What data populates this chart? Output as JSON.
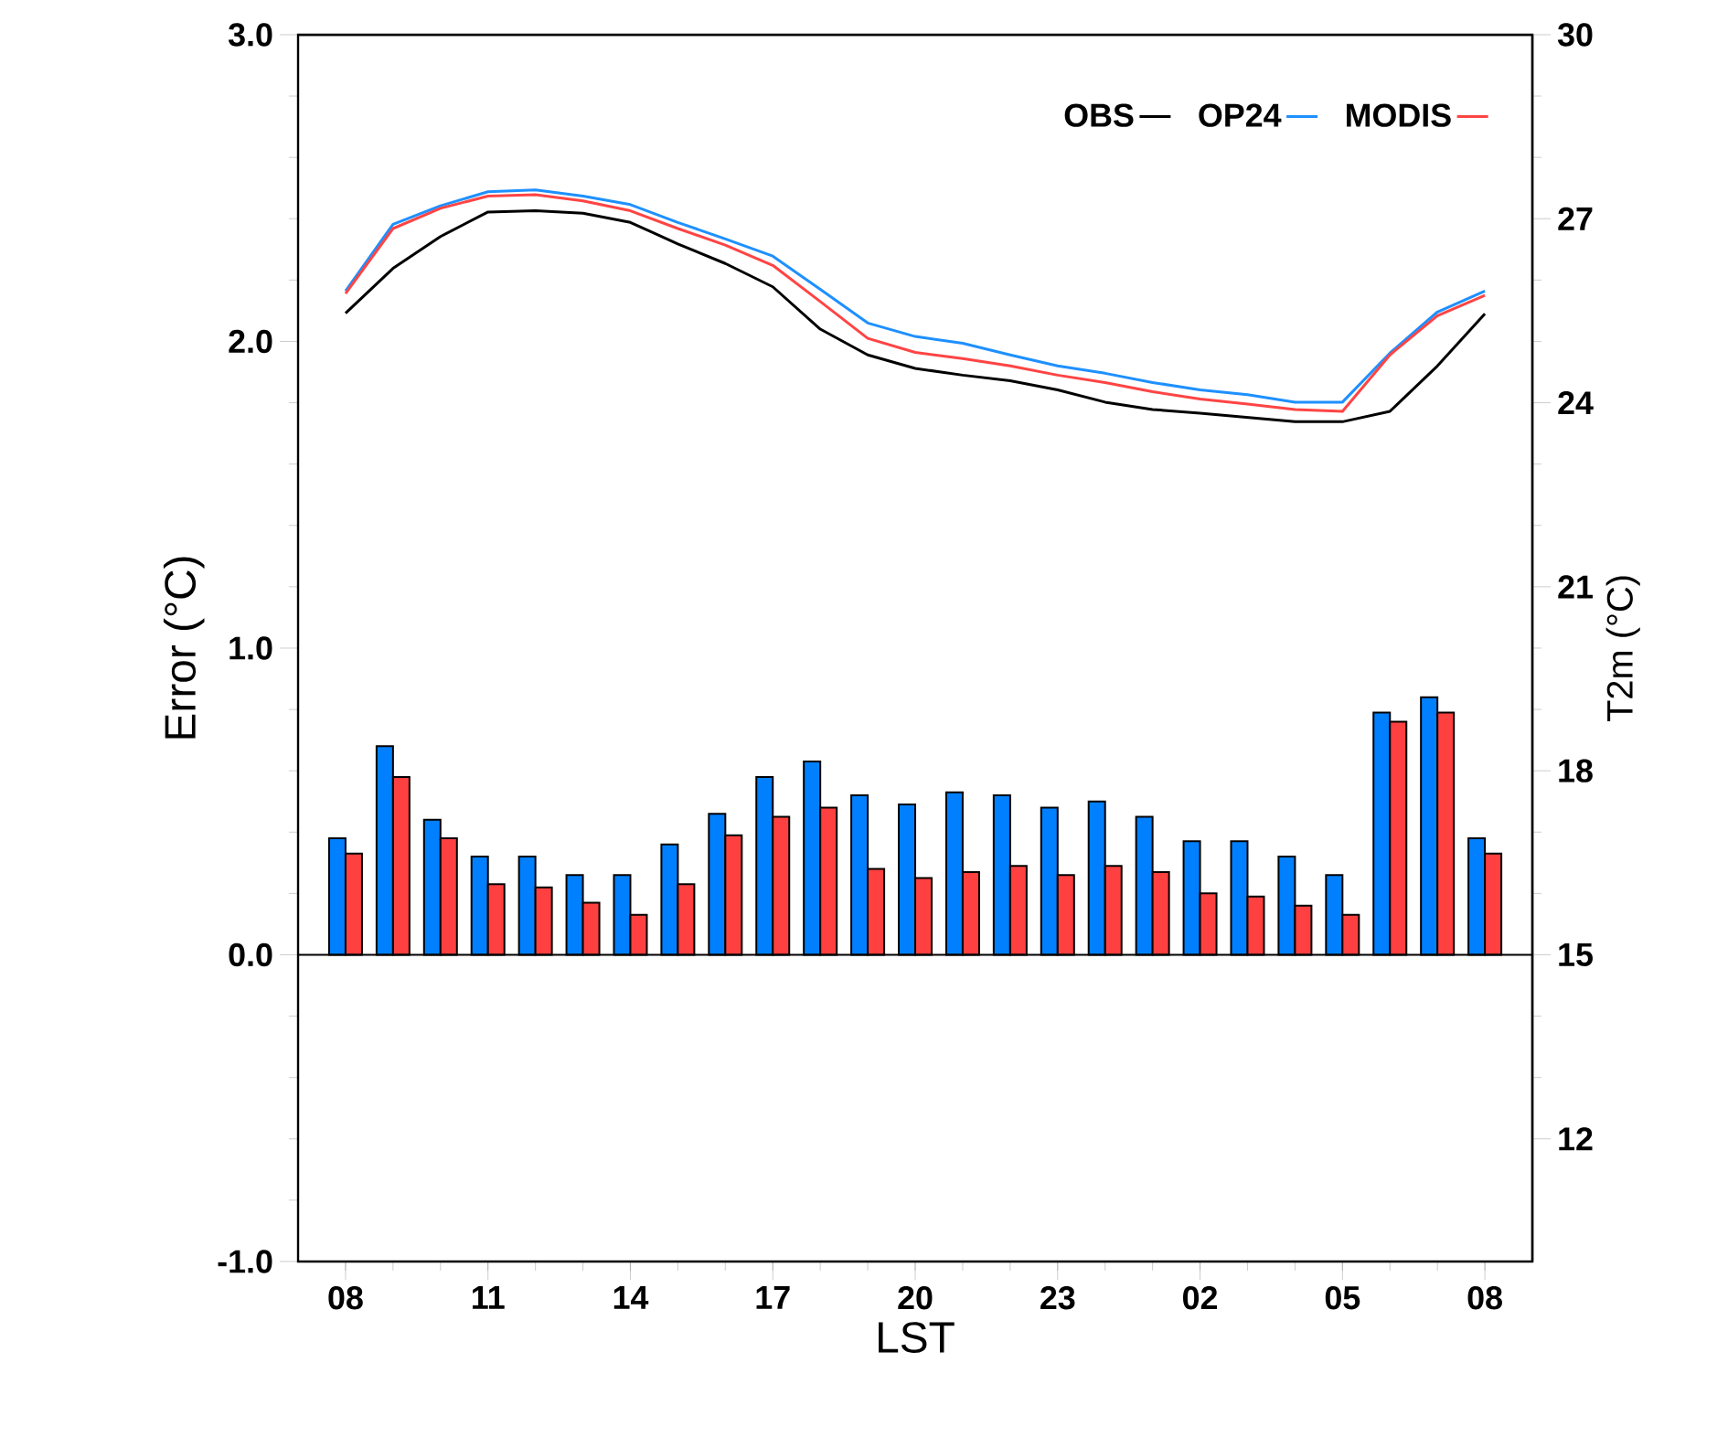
{
  "chart_data": {
    "type": "bar",
    "xlabel": "LST",
    "ylabel": "Error (°C)",
    "y2label": "T2m (°C)",
    "categories": [
      "08",
      null,
      null,
      "11",
      null,
      null,
      "14",
      null,
      null,
      "17",
      null,
      null,
      "20",
      null,
      null,
      "23",
      null,
      null,
      "02",
      null,
      null,
      "05",
      null,
      null,
      "08"
    ],
    "ylim": [
      -1,
      3
    ],
    "yticks": [
      {
        "value": -1,
        "label": "-1.0"
      },
      {
        "value": 0,
        "label": "0.0"
      },
      {
        "value": 1,
        "label": "1.0"
      },
      {
        "value": 2,
        "label": "2.0"
      },
      {
        "value": 3,
        "label": "3.0"
      }
    ],
    "y2lim": [
      10,
      30
    ],
    "y2ticks": [
      12,
      15,
      18,
      21,
      24,
      27,
      30
    ],
    "legend": "top right",
    "marker": "none",
    "ref_lines": [
      {
        "axis": "y",
        "value": 0,
        "color": "#000000"
      }
    ],
    "series": [
      {
        "color": "#0080ff",
        "values": [
          0.38,
          0.68,
          0.44,
          0.32,
          0.32,
          0.26,
          0.26,
          0.36,
          0.46,
          0.58,
          0.63,
          0.52,
          0.49,
          0.53,
          0.52,
          0.48,
          0.5,
          0.45,
          0.37,
          0.37,
          0.32,
          0.26,
          0.79,
          0.84,
          0.38
        ]
      },
      {
        "color": "#ff4040",
        "values": [
          0.33,
          0.58,
          0.38,
          0.23,
          0.22,
          0.17,
          0.13,
          0.23,
          0.39,
          0.45,
          0.48,
          0.28,
          0.25,
          0.27,
          0.29,
          0.26,
          0.29,
          0.27,
          0.2,
          0.19,
          0.16,
          0.13,
          0.76,
          0.79,
          0.33
        ]
      },
      {
        "type": "line",
        "axis": "y2",
        "name": "OBS",
        "color": "#000000",
        "values": [
          25.46,
          26.19,
          26.71,
          27.11,
          27.13,
          27.09,
          26.94,
          26.59,
          26.27,
          25.89,
          25.2,
          24.78,
          24.56,
          24.45,
          24.36,
          24.21,
          24.01,
          23.89,
          23.83,
          23.76,
          23.69,
          23.69,
          23.86,
          24.6,
          25.45
        ]
      },
      {
        "type": "line",
        "axis": "y2",
        "name": "OP24",
        "color": "#1e90ff",
        "values": [
          25.82,
          26.91,
          27.21,
          27.44,
          27.47,
          27.37,
          27.23,
          26.94,
          26.67,
          26.39,
          25.85,
          25.3,
          25.08,
          24.97,
          24.78,
          24.6,
          24.48,
          24.33,
          24.21,
          24.13,
          24.01,
          24.01,
          24.81,
          25.48,
          25.82
        ]
      },
      {
        "type": "line",
        "axis": "y2",
        "name": "MODIS",
        "color": "#ff4444",
        "values": [
          25.78,
          26.84,
          27.17,
          27.37,
          27.39,
          27.29,
          27.13,
          26.84,
          26.57,
          26.24,
          25.65,
          25.05,
          24.82,
          24.72,
          24.6,
          24.45,
          24.33,
          24.18,
          24.06,
          23.98,
          23.89,
          23.86,
          24.78,
          25.42,
          25.75
        ]
      }
    ]
  }
}
